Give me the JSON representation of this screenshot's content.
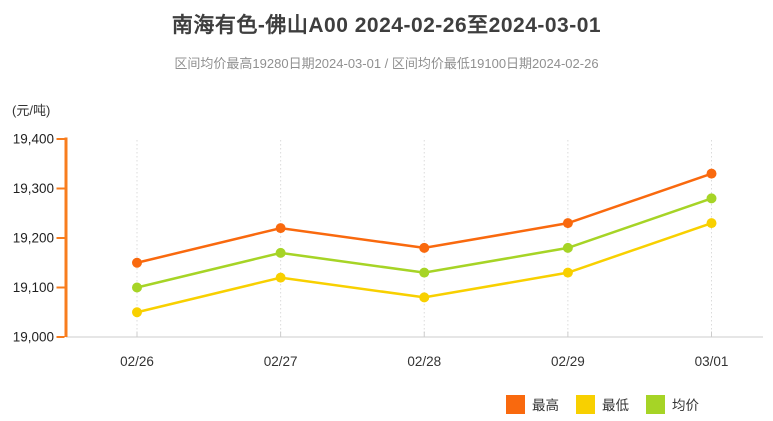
{
  "header": {
    "title": "南海有色-佛山A00 2024-02-26至2024-03-01",
    "subtitle": "区间均价最高19280日期2024-03-01 / 区间均价最低19100日期2024-02-26"
  },
  "chart_data": {
    "type": "line",
    "title": "南海有色-佛山A00 2024-02-26至2024-03-01",
    "subtitle": "区间均价最高19280日期2024-03-01 / 区间均价最低19100日期2024-02-26",
    "unit_label": "(元/吨)",
    "categories": [
      "02/26",
      "02/27",
      "02/28",
      "02/29",
      "03/01"
    ],
    "series": [
      {
        "name": "最高",
        "color": "#F9690E",
        "values": [
          19150,
          19220,
          19180,
          19230,
          19330
        ]
      },
      {
        "name": "最低",
        "color": "#F8D000",
        "values": [
          19050,
          19120,
          19080,
          19130,
          19230
        ]
      },
      {
        "name": "均价",
        "color": "#A6D426",
        "values": [
          19100,
          19170,
          19130,
          19180,
          19280
        ]
      }
    ],
    "ylim": [
      19000,
      19400
    ],
    "ytick_step": 100,
    "ytick_labels": [
      "19,000",
      "19,100",
      "19,200",
      "19,300",
      "19,400"
    ],
    "grid": "vertical-dotted",
    "legend_position": "bottom-right",
    "colors": {
      "y_axis": "#F87D1E",
      "x_axis": "#CCCCCC",
      "grid": "#DBDBDB",
      "title": "#3E3E3E",
      "subtitle": "#909090",
      "tick_label": "#1F1F1F"
    }
  }
}
